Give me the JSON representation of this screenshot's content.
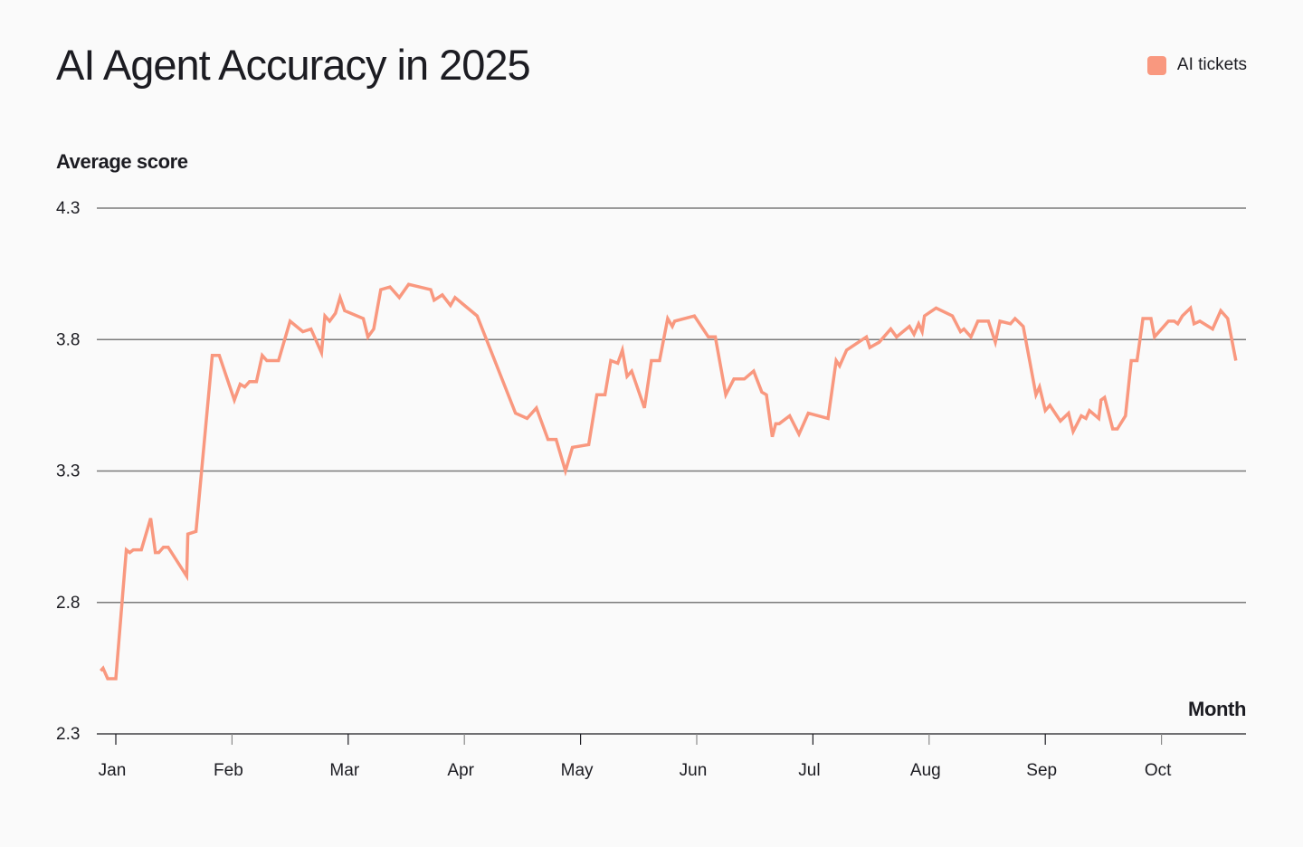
{
  "title": "AI Agent Accuracy in 2025",
  "legend": [
    {
      "label": "AI tickets",
      "color": "#f9987f"
    }
  ],
  "colors": {
    "line": "#f9987f",
    "grid": "#7a7a7a",
    "axis": "#1c1c22",
    "background": "#fafafa"
  },
  "chart_data": {
    "type": "line",
    "title": "AI Agent Accuracy in 2025",
    "xlabel": "Month",
    "ylabel": "Average score",
    "ylim": [
      2.3,
      4.3
    ],
    "yticks": [
      4.3,
      3.8,
      3.3,
      2.8,
      2.3
    ],
    "xticks": [
      "Jan",
      "Feb",
      "Mar",
      "Apr",
      "May",
      "Jun",
      "Jul",
      "Aug",
      "Sep",
      "Oct"
    ],
    "grid": true,
    "legend_position": "top-right",
    "x_unit": "months since Jan (0 = Jan tick, 1 = Feb tick, ...)",
    "series": [
      {
        "name": "AI tickets",
        "points": [
          [
            -0.13,
            2.54
          ],
          [
            -0.11,
            2.55
          ],
          [
            -0.07,
            2.51
          ],
          [
            0.0,
            2.51
          ],
          [
            0.09,
            3.0
          ],
          [
            0.12,
            2.99
          ],
          [
            0.15,
            3.0
          ],
          [
            0.22,
            3.0
          ],
          [
            0.3,
            3.12
          ],
          [
            0.34,
            2.99
          ],
          [
            0.37,
            2.99
          ],
          [
            0.41,
            3.01
          ],
          [
            0.45,
            3.01
          ],
          [
            0.61,
            2.9
          ],
          [
            0.62,
            3.06
          ],
          [
            0.69,
            3.07
          ],
          [
            0.83,
            3.74
          ],
          [
            0.89,
            3.74
          ],
          [
            1.02,
            3.57
          ],
          [
            1.07,
            3.63
          ],
          [
            1.11,
            3.62
          ],
          [
            1.15,
            3.64
          ],
          [
            1.21,
            3.64
          ],
          [
            1.26,
            3.74
          ],
          [
            1.3,
            3.72
          ],
          [
            1.4,
            3.72
          ],
          [
            1.5,
            3.87
          ],
          [
            1.61,
            3.83
          ],
          [
            1.68,
            3.84
          ],
          [
            1.77,
            3.75
          ],
          [
            1.8,
            3.89
          ],
          [
            1.84,
            3.87
          ],
          [
            1.89,
            3.9
          ],
          [
            1.93,
            3.96
          ],
          [
            1.97,
            3.91
          ],
          [
            2.13,
            3.88
          ],
          [
            2.17,
            3.81
          ],
          [
            2.22,
            3.84
          ],
          [
            2.28,
            3.99
          ],
          [
            2.36,
            4.0
          ],
          [
            2.44,
            3.96
          ],
          [
            2.52,
            4.01
          ],
          [
            2.71,
            3.99
          ],
          [
            2.74,
            3.95
          ],
          [
            2.81,
            3.97
          ],
          [
            2.88,
            3.93
          ],
          [
            2.92,
            3.96
          ],
          [
            3.11,
            3.89
          ],
          [
            3.44,
            3.52
          ],
          [
            3.54,
            3.5
          ],
          [
            3.62,
            3.54
          ],
          [
            3.72,
            3.42
          ],
          [
            3.79,
            3.42
          ],
          [
            3.87,
            3.3
          ],
          [
            3.93,
            3.39
          ],
          [
            4.07,
            3.4
          ],
          [
            4.14,
            3.59
          ],
          [
            4.21,
            3.59
          ],
          [
            4.26,
            3.72
          ],
          [
            4.32,
            3.71
          ],
          [
            4.36,
            3.76
          ],
          [
            4.4,
            3.66
          ],
          [
            4.44,
            3.68
          ],
          [
            4.55,
            3.54
          ],
          [
            4.61,
            3.72
          ],
          [
            4.68,
            3.72
          ],
          [
            4.75,
            3.88
          ],
          [
            4.79,
            3.85
          ],
          [
            4.81,
            3.87
          ],
          [
            4.98,
            3.89
          ],
          [
            5.1,
            3.81
          ],
          [
            5.16,
            3.81
          ],
          [
            5.25,
            3.59
          ],
          [
            5.32,
            3.65
          ],
          [
            5.41,
            3.65
          ],
          [
            5.49,
            3.68
          ],
          [
            5.56,
            3.6
          ],
          [
            5.6,
            3.59
          ],
          [
            5.65,
            3.43
          ],
          [
            5.68,
            3.48
          ],
          [
            5.71,
            3.48
          ],
          [
            5.8,
            3.51
          ],
          [
            5.88,
            3.44
          ],
          [
            5.96,
            3.52
          ],
          [
            6.13,
            3.5
          ],
          [
            6.2,
            3.72
          ],
          [
            6.23,
            3.7
          ],
          [
            6.29,
            3.76
          ],
          [
            6.46,
            3.81
          ],
          [
            6.49,
            3.77
          ],
          [
            6.57,
            3.79
          ],
          [
            6.67,
            3.84
          ],
          [
            6.72,
            3.81
          ],
          [
            6.83,
            3.85
          ],
          [
            6.87,
            3.82
          ],
          [
            6.91,
            3.86
          ],
          [
            6.94,
            3.83
          ],
          [
            6.96,
            3.89
          ],
          [
            7.06,
            3.92
          ],
          [
            7.2,
            3.89
          ],
          [
            7.27,
            3.83
          ],
          [
            7.3,
            3.84
          ],
          [
            7.36,
            3.81
          ],
          [
            7.42,
            3.87
          ],
          [
            7.51,
            3.87
          ],
          [
            7.57,
            3.79
          ],
          [
            7.61,
            3.87
          ],
          [
            7.7,
            3.86
          ],
          [
            7.74,
            3.88
          ],
          [
            7.81,
            3.85
          ],
          [
            7.92,
            3.59
          ],
          [
            7.95,
            3.62
          ],
          [
            8.0,
            3.53
          ],
          [
            8.04,
            3.55
          ],
          [
            8.13,
            3.49
          ],
          [
            8.2,
            3.52
          ],
          [
            8.24,
            3.45
          ],
          [
            8.31,
            3.51
          ],
          [
            8.35,
            3.5
          ],
          [
            8.38,
            3.53
          ],
          [
            8.46,
            3.5
          ],
          [
            8.48,
            3.57
          ],
          [
            8.51,
            3.58
          ],
          [
            8.58,
            3.46
          ],
          [
            8.62,
            3.46
          ],
          [
            8.69,
            3.51
          ],
          [
            8.74,
            3.72
          ],
          [
            8.79,
            3.72
          ],
          [
            8.84,
            3.88
          ],
          [
            8.91,
            3.88
          ],
          [
            8.94,
            3.81
          ],
          [
            9.06,
            3.87
          ],
          [
            9.11,
            3.87
          ],
          [
            9.14,
            3.86
          ],
          [
            9.18,
            3.89
          ],
          [
            9.25,
            3.92
          ],
          [
            9.28,
            3.86
          ],
          [
            9.33,
            3.87
          ],
          [
            9.44,
            3.84
          ],
          [
            9.51,
            3.91
          ],
          [
            9.57,
            3.88
          ],
          [
            9.64,
            3.72
          ]
        ]
      }
    ]
  },
  "axes": {
    "y_title": "Average score",
    "x_title": "Month",
    "y_ticks": [
      "4.3",
      "3.8",
      "3.3",
      "2.8",
      "2.3"
    ],
    "x_ticks": [
      "Jan",
      "Feb",
      "Mar",
      "Apr",
      "May",
      "Jun",
      "Jul",
      "Aug",
      "Sep",
      "Oct"
    ]
  }
}
